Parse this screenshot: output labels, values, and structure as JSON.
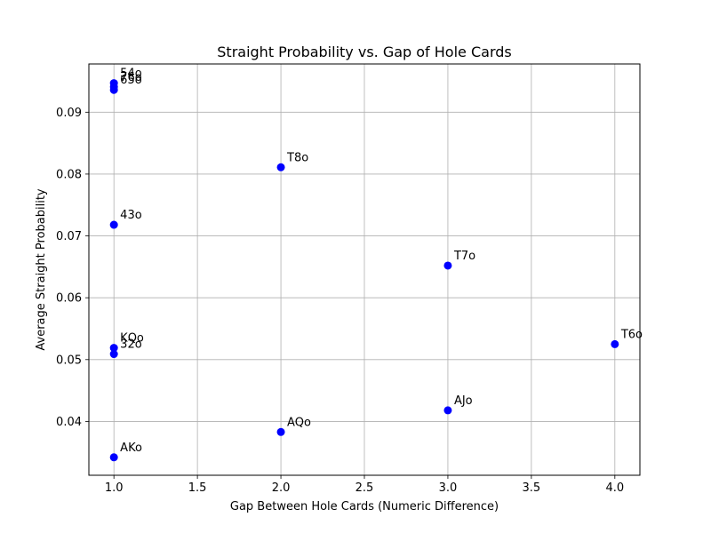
{
  "chart_data": {
    "type": "scatter",
    "title": "Straight Probability vs. Gap of Hole Cards",
    "xlabel": "Gap Between Hole Cards (Numeric Difference)",
    "ylabel": "Average Straight Probability",
    "xlim": [
      0.85,
      4.15
    ],
    "ylim": [
      0.0313,
      0.0978
    ],
    "xticks": [
      1.0,
      1.5,
      2.0,
      2.5,
      3.0,
      3.5,
      4.0
    ],
    "xtick_labels": [
      "1.0",
      "1.5",
      "2.0",
      "2.5",
      "3.0",
      "3.5",
      "4.0"
    ],
    "yticks": [
      0.04,
      0.05,
      0.06,
      0.07,
      0.08,
      0.09
    ],
    "ytick_labels": [
      "0.04",
      "0.05",
      "0.06",
      "0.07",
      "0.08",
      "0.09"
    ],
    "grid": true,
    "marker_color": "#0000ff",
    "points": [
      {
        "label": "54o",
        "x": 1.0,
        "y": 0.0947
      },
      {
        "label": "76o",
        "x": 1.0,
        "y": 0.0941
      },
      {
        "label": "65o",
        "x": 1.0,
        "y": 0.0936
      },
      {
        "label": "T8o",
        "x": 2.0,
        "y": 0.0811
      },
      {
        "label": "43o",
        "x": 1.0,
        "y": 0.0718
      },
      {
        "label": "T7o",
        "x": 3.0,
        "y": 0.0652
      },
      {
        "label": "T6o",
        "x": 4.0,
        "y": 0.0525
      },
      {
        "label": "KQo",
        "x": 1.0,
        "y": 0.0519
      },
      {
        "label": "32o",
        "x": 1.0,
        "y": 0.0509
      },
      {
        "label": "AJo",
        "x": 3.0,
        "y": 0.0418
      },
      {
        "label": "AQo",
        "x": 2.0,
        "y": 0.0383
      },
      {
        "label": "AKo",
        "x": 1.0,
        "y": 0.0342
      }
    ]
  }
}
